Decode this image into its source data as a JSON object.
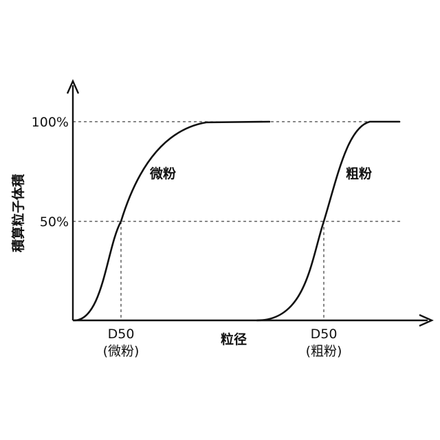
{
  "y_axis": {
    "title": "積算粒子体積",
    "tick_100": "100%",
    "tick_50": "50%"
  },
  "x_axis": {
    "title": "粒径"
  },
  "curves": {
    "fine_label": "微粉",
    "coarse_label": "粗粉"
  },
  "markers": {
    "fine_d50_line1": "D50",
    "fine_d50_line2": "(微粉)",
    "coarse_d50_line1": "D50",
    "coarse_d50_line2": "(粗粉)"
  },
  "chart_data": {
    "type": "line",
    "series": [
      {
        "name": "微粉",
        "x": [
          0.0,
          0.05,
          0.1,
          0.16,
          0.22,
          0.3,
          0.4,
          0.5
        ],
        "y": [
          0,
          2,
          20,
          50,
          75,
          92,
          99,
          100
        ]
      },
      {
        "name": "粗粉",
        "x": [
          0.58,
          0.63,
          0.68,
          0.74,
          0.8,
          0.86,
          0.93,
          1.0
        ],
        "y": [
          0,
          2,
          20,
          50,
          80,
          96,
          100,
          100
        ]
      }
    ],
    "reference_lines_y": [
      50,
      100
    ],
    "d50_markers": [
      "D50 (微粉)",
      "D50 (粗粉)"
    ],
    "ylim": [
      0,
      100
    ],
    "grid": false,
    "legend": "none"
  }
}
